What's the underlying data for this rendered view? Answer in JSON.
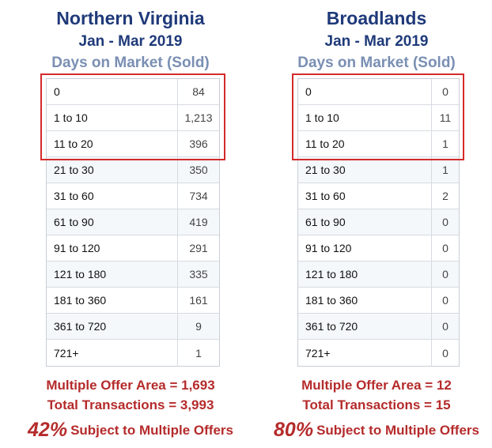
{
  "left": {
    "title": "Northern Virginia",
    "period": "Jan - Mar 2019",
    "caption": "Days on Market (Sold)",
    "rows": [
      {
        "label": "0",
        "value": "84"
      },
      {
        "label": "1 to 10",
        "value": "1,213"
      },
      {
        "label": "11 to 20",
        "value": "396"
      },
      {
        "label": "21 to 30",
        "value": "350"
      },
      {
        "label": "31 to 60",
        "value": "734"
      },
      {
        "label": "61 to 90",
        "value": "419"
      },
      {
        "label": "91 to 120",
        "value": "291"
      },
      {
        "label": "121 to 180",
        "value": "335"
      },
      {
        "label": "181 to 360",
        "value": "161"
      },
      {
        "label": "361 to 720",
        "value": "9"
      },
      {
        "label": "721+",
        "value": "1"
      }
    ],
    "multiple_offer_area": "Multiple Offer Area = 1,693",
    "total_transactions": "Total Transactions  = 3,993",
    "percent": "42%",
    "percent_text": "Subject to Multiple Offers"
  },
  "right": {
    "title": "Broadlands",
    "period": "Jan - Mar 2019",
    "caption": "Days on Market (Sold)",
    "rows": [
      {
        "label": "0",
        "value": "0"
      },
      {
        "label": "1 to 10",
        "value": "11"
      },
      {
        "label": "11 to 20",
        "value": "1"
      },
      {
        "label": "21 to 30",
        "value": "1"
      },
      {
        "label": "31 to 60",
        "value": "2"
      },
      {
        "label": "61 to 90",
        "value": "0"
      },
      {
        "label": "91 to 120",
        "value": "0"
      },
      {
        "label": "121 to 180",
        "value": "0"
      },
      {
        "label": "181 to 360",
        "value": "0"
      },
      {
        "label": "361 to 720",
        "value": "0"
      },
      {
        "label": "721+",
        "value": "0"
      }
    ],
    "multiple_offer_area": "Multiple Offer Area = 12",
    "total_transactions": "Total Transactions  = 15",
    "percent": "80%",
    "percent_text": "Subject to Multiple Offers"
  },
  "colors": {
    "title": "#1f3a7a",
    "caption": "#7a8fb3",
    "highlight": "#d42a2a",
    "stats": "#b52b2b"
  }
}
